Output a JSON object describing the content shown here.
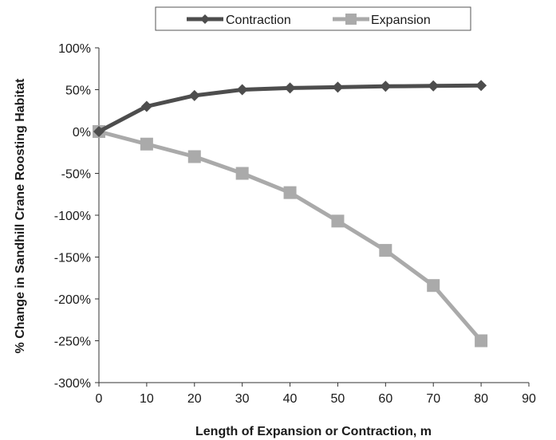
{
  "chart_data": {
    "type": "line",
    "title": "",
    "xlabel": "Length of Expansion or Contraction, m",
    "ylabel": "% Change in Sandhill Crane Roosting Habitat",
    "xlim": [
      0,
      90
    ],
    "ylim": [
      -300,
      100
    ],
    "x_ticks": [
      0,
      10,
      20,
      30,
      40,
      50,
      60,
      70,
      80,
      90
    ],
    "y_ticks": [
      100,
      50,
      0,
      -50,
      -100,
      -150,
      -200,
      -250,
      -300
    ],
    "y_tick_labels": [
      "100%",
      "50%",
      "0%",
      "-50%",
      "-100%",
      "-150%",
      "-200%",
      "-250%",
      "-300%"
    ],
    "grid": false,
    "legend_position": "top",
    "series": [
      {
        "name": "Contraction",
        "marker": "diamond",
        "color": "#4d4d4d",
        "x": [
          0,
          10,
          20,
          30,
          40,
          50,
          60,
          70,
          80
        ],
        "y": [
          0,
          30,
          43,
          50,
          52,
          53,
          54,
          54.5,
          55
        ]
      },
      {
        "name": "Expansion",
        "marker": "square",
        "color": "#aaaaaa",
        "x": [
          0,
          10,
          20,
          30,
          40,
          50,
          60,
          70,
          80
        ],
        "y": [
          0,
          -15,
          -30,
          -50,
          -73,
          -107,
          -142,
          -184,
          -250
        ]
      }
    ]
  }
}
